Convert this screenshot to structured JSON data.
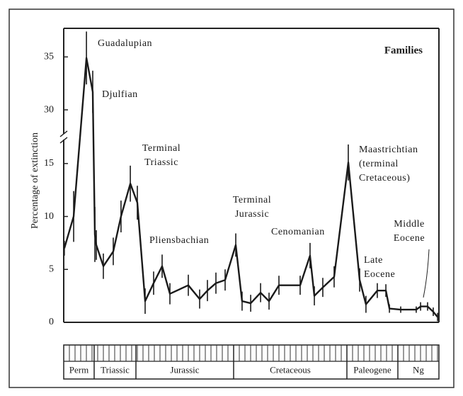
{
  "chart_data": {
    "type": "line",
    "y_label": "Percentage of extinction",
    "ylim": [
      0,
      37.7
    ],
    "axis_break": [
      17,
      28
    ],
    "yticks": [
      0,
      5,
      10,
      15,
      30,
      35
    ],
    "xlim": [
      263,
      0
    ],
    "periods": [
      {
        "name": "Perm",
        "start": 263,
        "end": 248
      },
      {
        "name": "Triassic",
        "start": 248,
        "end": 213
      },
      {
        "name": "Jurassic",
        "start": 213,
        "end": 144
      },
      {
        "name": "Cretaceous",
        "start": 144,
        "end": 65
      },
      {
        "name": "Paleogene",
        "start": 65,
        "end": 24.6
      },
      {
        "name": "Ng",
        "start": 24.6,
        "end": 0
      }
    ],
    "series": [
      {
        "name": "Families",
        "color": "#1a1a1a",
        "x": [
          262.7,
          258.1,
          251.8,
          248.7,
          247.4,
          246.2,
          240.3,
          232,
          225.5,
          217.7,
          212,
          206.5,
          200.5,
          194.5,
          189,
          176,
          168,
          162.5,
          156.5,
          150,
          142.5,
          138.1,
          132.1,
          125.2,
          119.3,
          112.4,
          97.6,
          90.7,
          87.7,
          81.8,
          73.9,
          63.9,
          54.9,
          49.9,
          40.9,
          34.1,
          31.3,
          22.9,
          13.6,
          11.0,
          6.8,
          3.4,
          0.8
        ],
        "values": [
          7.0,
          10.0,
          34.9,
          31.7,
          8.3,
          7.3,
          5.3,
          6.7,
          10.0,
          13.1,
          11.3,
          2.0,
          3.7,
          5.3,
          2.7,
          3.5,
          2.2,
          3.0,
          3.7,
          4.0,
          7.3,
          2.0,
          1.8,
          2.8,
          2.0,
          3.5,
          3.5,
          6.3,
          2.5,
          3.3,
          4.3,
          15.1,
          4.0,
          1.7,
          3.0,
          3.0,
          1.3,
          1.2,
          1.2,
          1.5,
          1.5,
          1.0,
          0.5
        ],
        "errors": [
          0.7,
          2.4,
          2.5,
          2.0,
          2.6,
          1.4,
          1.2,
          1.3,
          1.5,
          1.7,
          1.6,
          1.2,
          1.1,
          1.1,
          1.0,
          1.0,
          0.9,
          1.0,
          1.0,
          1.0,
          1.1,
          0.9,
          0.8,
          0.9,
          0.8,
          0.9,
          0.9,
          1.2,
          0.9,
          0.9,
          1.0,
          1.7,
          1.1,
          0.8,
          0.7,
          0.6,
          0.4,
          0.3,
          0.3,
          0.4,
          0.4,
          0.4,
          0.4
        ]
      }
    ],
    "annotations": [
      {
        "lines": [
          "Guadalupian"
        ]
      },
      {
        "lines": [
          "Djulfian"
        ]
      },
      {
        "lines": [
          "Terminal",
          "Triassic"
        ]
      },
      {
        "lines": [
          "Pliensbachian"
        ]
      },
      {
        "lines": [
          "Terminal",
          "Jurassic"
        ]
      },
      {
        "lines": [
          "Cenomanian"
        ]
      },
      {
        "lines": [
          "Maastrichtian",
          "(terminal",
          "Cretaceous)"
        ]
      },
      {
        "lines": [
          "Late",
          "Eocene"
        ]
      },
      {
        "lines": [
          "Middle",
          "Eocene"
        ]
      }
    ]
  }
}
